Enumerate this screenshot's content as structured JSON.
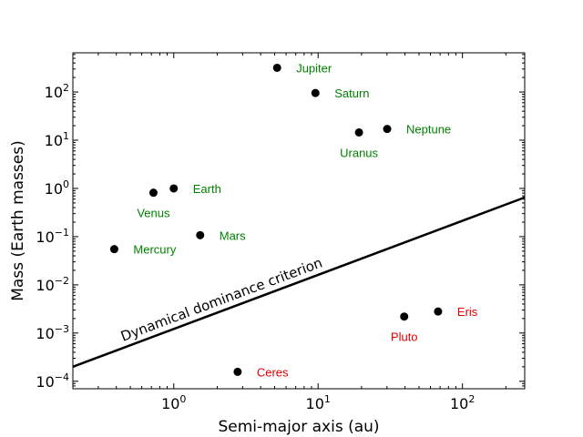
{
  "chart_data": {
    "type": "scatter",
    "xscale": "log",
    "yscale": "log",
    "xlim": [
      0.2,
      270
    ],
    "ylim": [
      7e-05,
      650
    ],
    "xlabel": "Semi-major axis (au)",
    "ylabel": "Mass (Earth masses)",
    "xticks": [
      {
        "value": 1,
        "base": "10",
        "exp": "0"
      },
      {
        "value": 10,
        "base": "10",
        "exp": "1"
      },
      {
        "value": 100,
        "base": "10",
        "exp": "2"
      }
    ],
    "yticks": [
      {
        "value": 0.0001,
        "base": "10",
        "exp": "−4"
      },
      {
        "value": 0.001,
        "base": "10",
        "exp": "−3"
      },
      {
        "value": 0.01,
        "base": "10",
        "exp": "−2"
      },
      {
        "value": 0.1,
        "base": "10",
        "exp": "−1"
      },
      {
        "value": 1,
        "base": "10",
        "exp": "0"
      },
      {
        "value": 10,
        "base": "10",
        "exp": "1"
      },
      {
        "value": 100,
        "base": "10",
        "exp": "2"
      }
    ],
    "points": [
      {
        "name": "Mercury",
        "a": 0.387,
        "m": 0.055,
        "color": "#008000",
        "label_pos": "right"
      },
      {
        "name": "Venus",
        "a": 0.723,
        "m": 0.815,
        "color": "#008000",
        "label_pos": "below"
      },
      {
        "name": "Earth",
        "a": 1.0,
        "m": 1.0,
        "color": "#008000",
        "label_pos": "right"
      },
      {
        "name": "Mars",
        "a": 1.524,
        "m": 0.107,
        "color": "#008000",
        "label_pos": "right"
      },
      {
        "name": "Jupiter",
        "a": 5.2,
        "m": 317.8,
        "color": "#008000",
        "label_pos": "right"
      },
      {
        "name": "Saturn",
        "a": 9.58,
        "m": 95.2,
        "color": "#008000",
        "label_pos": "right"
      },
      {
        "name": "Uranus",
        "a": 19.2,
        "m": 14.5,
        "color": "#008000",
        "label_pos": "below"
      },
      {
        "name": "Neptune",
        "a": 30.1,
        "m": 17.1,
        "color": "#008000",
        "label_pos": "right"
      },
      {
        "name": "Ceres",
        "a": 2.77,
        "m": 0.000157,
        "color": "#e00000",
        "label_pos": "right"
      },
      {
        "name": "Pluto",
        "a": 39.5,
        "m": 0.0022,
        "color": "#e00000",
        "label_pos": "below"
      },
      {
        "name": "Eris",
        "a": 67.8,
        "m": 0.0028,
        "color": "#e00000",
        "label_pos": "right"
      }
    ],
    "criterion_line": {
      "label": "Dynamical dominance criterion",
      "x": [
        0.2,
        270
      ],
      "y": [
        0.0002,
        0.65
      ]
    }
  }
}
